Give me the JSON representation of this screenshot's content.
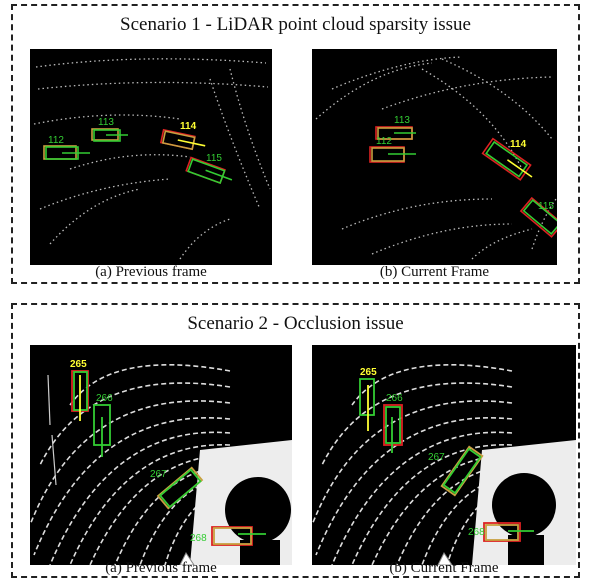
{
  "scenario1": {
    "title": "Scenario 1 - LiDAR point cloud sparsity issue",
    "caption_a": "(a) Previous frame",
    "caption_b": "(b) Current Frame",
    "panel_a_ids": [
      "113",
      "114",
      "112",
      "115"
    ],
    "panel_b_ids": [
      "113",
      "112",
      "114",
      "115"
    ]
  },
  "scenario2": {
    "title": "Scenario 2 - Occlusion issue",
    "caption_a": "(a) Previous frame",
    "caption_b": "(b) Current Frame",
    "panel_a_ids": [
      "265",
      "266",
      "267",
      "268"
    ],
    "panel_b_ids": [
      "265",
      "266",
      "267",
      "268"
    ]
  },
  "colors": {
    "ground_truth": "#33cc33",
    "prediction": "#dd2222",
    "tracked_box": "#c8a040",
    "highlight_label": "#ffff33",
    "point_cloud": "#e8e8e8",
    "background": "#000000"
  }
}
